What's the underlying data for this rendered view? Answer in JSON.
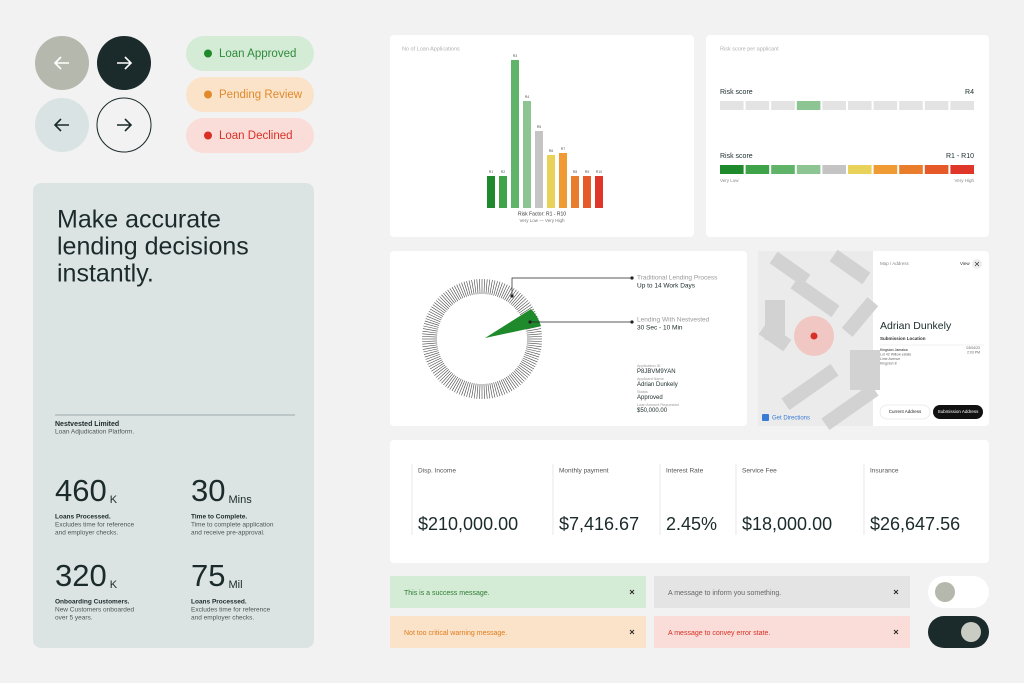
{
  "status_pills": [
    "Loan Approved",
    "Pending Review",
    "Loan Declined"
  ],
  "hero": {
    "headline": [
      "Make accurate",
      "lending decisions",
      "instantly."
    ],
    "company": "Nestvested Limited",
    "tagline": "Loan Adjudication Platform.",
    "stats": [
      {
        "value": 460,
        "unit": "K",
        "title": "Loans Processed.",
        "description": [
          "Excludes time for reference",
          "and employer checks."
        ]
      },
      {
        "value": 30,
        "unit": "Mins",
        "title": "Time to Complete.",
        "description": [
          "Time to complete application",
          "and receive pre-approval."
        ]
      },
      {
        "value": 320,
        "unit": "K",
        "title": "Onboarding Customers.",
        "description": [
          "New Customers onboarded",
          "over 5 years."
        ]
      },
      {
        "value": 75,
        "unit": "Mil",
        "title": "Loans Processed.",
        "description": [
          "Excludes time for reference",
          "and employer checks."
        ]
      }
    ]
  },
  "chart_data": {
    "type": "bar",
    "title": "No of Loan Applications",
    "categories": [
      "R1",
      "R2",
      "R3",
      "R4",
      "R5",
      "R6",
      "R7",
      "R8",
      "R9",
      "R10"
    ],
    "values": [
      32,
      32,
      148,
      107,
      77,
      53,
      55,
      32,
      32,
      32
    ],
    "colors": [
      "#1e8a2c",
      "#3fa34a",
      "#5fb46a",
      "#8cc592",
      "#c4c4c4",
      "#e8d25a",
      "#f09a33",
      "#ea7d2b",
      "#e65a2a",
      "#e0362a"
    ],
    "ylim": [
      0,
      150
    ],
    "x_label": "Risk Factor: R1 - R10",
    "scale_label": "Very Low —  Very High"
  },
  "risk_card": {
    "title": "Risk score per applicant",
    "rows": [
      {
        "label": "Risk score",
        "value": "R4",
        "active": 3
      },
      {
        "label": "Risk score",
        "value": "R1 - R10"
      }
    ],
    "low": "Very Low",
    "high": "Very High"
  },
  "timeline": {
    "items": [
      {
        "label": "Traditional Lending Process",
        "value": "Up to 14 Work Days"
      },
      {
        "label": "Lending With Nestvested",
        "value": "30 Sec - 10 Min"
      }
    ],
    "application": [
      {
        "label": "Application ID",
        "value": "P8JBVM9YAN"
      },
      {
        "label": "Applicant Name",
        "value": "Adrian Dunkely"
      },
      {
        "label": "Status",
        "value": "Approved"
      },
      {
        "label": "Loan Amount Requested",
        "value": "$50,000.00"
      }
    ]
  },
  "map_card": {
    "header": "Map / Address",
    "view": "View",
    "name": "Adrian Dunkely",
    "subtitle": "Submission Location",
    "address": [
      "Kingston Jamaica",
      "Lot 42 Willow estate",
      "Lime Avenue",
      "Kingston 8"
    ],
    "meta": [
      "03/04/23",
      "2:03 PM"
    ],
    "directions": "Get Directions",
    "buttons": [
      "Current Address",
      "Submission Address"
    ]
  },
  "finance": [
    {
      "label": "Disp. Income",
      "value": "$210,000.00"
    },
    {
      "label": "Monthly payment",
      "value": "$7,416.67"
    },
    {
      "label": "Interest Rate",
      "value": "2.45%"
    },
    {
      "label": "Service Fee",
      "value": "$18,000.00"
    },
    {
      "label": "Insurance",
      "value": "$26,647.56"
    }
  ],
  "toasts": [
    {
      "text": "This is a success message.",
      "tone": "success"
    },
    {
      "text": "A message to inform you something.",
      "tone": "info"
    },
    {
      "text": "Not too critical warning message.",
      "tone": "warning"
    },
    {
      "text": "A message to convey error state.",
      "tone": "error"
    }
  ],
  "toggles": [
    {
      "on": false
    },
    {
      "on": true
    }
  ]
}
